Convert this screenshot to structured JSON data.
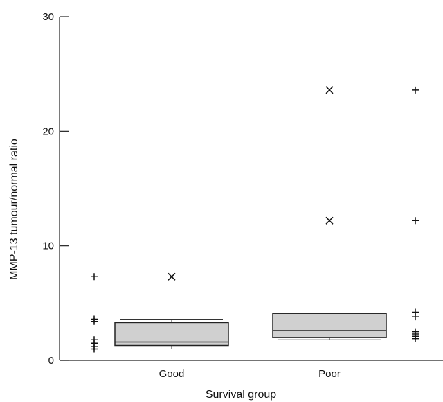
{
  "chart_data": {
    "type": "box",
    "title": "",
    "xlabel": "Survival group",
    "ylabel": "MMP-13 tumour/normal ratio",
    "ylim": [
      0,
      30
    ],
    "yticks": [
      0,
      10,
      20,
      30
    ],
    "categories": [
      "Good",
      "Poor"
    ],
    "boxes": [
      {
        "category": "Good",
        "whisker_low": 1.0,
        "q1": 1.3,
        "median": 1.6,
        "q3": 3.3,
        "whisker_high": 3.6
      },
      {
        "category": "Poor",
        "whisker_low": 1.8,
        "q1": 2.0,
        "median": 2.6,
        "q3": 4.1,
        "whisker_high": 4.1
      }
    ],
    "outliers": [
      {
        "category": "Good",
        "values": [
          7.3
        ]
      },
      {
        "category": "Poor",
        "values": [
          12.2,
          23.6
        ]
      }
    ],
    "individual_points": [
      {
        "column": "left",
        "values": [
          1.0,
          1.2,
          1.5,
          1.8,
          3.4,
          3.6,
          7.3
        ]
      },
      {
        "column": "right",
        "values": [
          1.9,
          2.1,
          2.3,
          2.5,
          3.8,
          4.2,
          12.2,
          23.6
        ]
      }
    ],
    "markers": {
      "outlier": "×",
      "individual": "+"
    },
    "box_color": "#d0d0d0"
  }
}
